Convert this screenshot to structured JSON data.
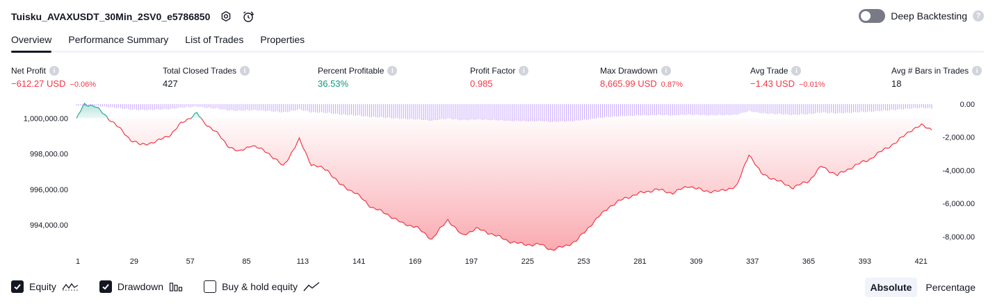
{
  "header": {
    "title": "Tuisku_AVAXUSDT_30Min_2SV0_e5786850",
    "deep_backtesting_label": "Deep Backtesting",
    "help_glyph": "?"
  },
  "tabs": [
    {
      "label": "Overview",
      "active": true
    },
    {
      "label": "Performance Summary",
      "active": false
    },
    {
      "label": "List of Trades",
      "active": false
    },
    {
      "label": "Properties",
      "active": false
    }
  ],
  "metrics": [
    {
      "label": "Net Profit",
      "value": "−612.27 USD",
      "pct": "−0.06%",
      "color": "red"
    },
    {
      "label": "Total Closed Trades",
      "value": "427",
      "pct": "",
      "color": "dark"
    },
    {
      "label": "Percent Profitable",
      "value": "36.53%",
      "pct": "",
      "color": "green"
    },
    {
      "label": "Profit Factor",
      "value": "0.985",
      "pct": "",
      "color": "red"
    },
    {
      "label": "Max Drawdown",
      "value": "8,665.99 USD",
      "pct": "0.87%",
      "color": "red"
    },
    {
      "label": "Avg Trade",
      "value": "−1.43 USD",
      "pct": "−0.01%",
      "color": "red"
    },
    {
      "label": "Avg # Bars in Trades",
      "value": "18",
      "pct": "",
      "color": "dark"
    }
  ],
  "info_glyph": "i",
  "chart_data": {
    "type": "area",
    "x_ticks": [
      "1",
      "29",
      "57",
      "85",
      "113",
      "141",
      "169",
      "197",
      "225",
      "253",
      "281",
      "309",
      "337",
      "365",
      "393",
      "421"
    ],
    "x_range": [
      1,
      427
    ],
    "y_left_ticks": [
      "1,000,000.00",
      "998,000.00",
      "996,000.00",
      "994,000.00"
    ],
    "y_left_range": [
      992600,
      1000800
    ],
    "y_right_ticks": [
      "0.00",
      "-2,000.00",
      "-4,000.00",
      "-6,000.00",
      "-8,000.00"
    ],
    "y_right_range": [
      -8800,
      0
    ],
    "baseline": 1000000,
    "series": [
      {
        "name": "Equity",
        "anchors": [
          [
            1,
            1000000
          ],
          [
            5,
            1000800
          ],
          [
            10,
            1000700
          ],
          [
            14,
            1000300
          ],
          [
            20,
            999700
          ],
          [
            28,
            998800
          ],
          [
            33,
            998500
          ],
          [
            41,
            998700
          ],
          [
            48,
            999100
          ],
          [
            53,
            999700
          ],
          [
            57,
            1000000
          ],
          [
            61,
            1000300
          ],
          [
            64,
            999800
          ],
          [
            70,
            999300
          ],
          [
            76,
            998500
          ],
          [
            82,
            998100
          ],
          [
            88,
            998500
          ],
          [
            96,
            998100
          ],
          [
            104,
            997300
          ],
          [
            112,
            998800
          ],
          [
            118,
            997400
          ],
          [
            126,
            997100
          ],
          [
            132,
            996300
          ],
          [
            140,
            995800
          ],
          [
            148,
            995000
          ],
          [
            156,
            994600
          ],
          [
            163,
            994100
          ],
          [
            170,
            993900
          ],
          [
            178,
            993200
          ],
          [
            186,
            994300
          ],
          [
            193,
            993400
          ],
          [
            200,
            993800
          ],
          [
            208,
            993500
          ],
          [
            216,
            993100
          ],
          [
            224,
            992900
          ],
          [
            232,
            992900
          ],
          [
            238,
            992600
          ],
          [
            244,
            992800
          ],
          [
            250,
            993100
          ],
          [
            258,
            994100
          ],
          [
            266,
            995000
          ],
          [
            274,
            995500
          ],
          [
            282,
            995800
          ],
          [
            290,
            996000
          ],
          [
            298,
            995800
          ],
          [
            306,
            996200
          ],
          [
            314,
            995900
          ],
          [
            322,
            995900
          ],
          [
            330,
            996200
          ],
          [
            336,
            998000
          ],
          [
            342,
            996900
          ],
          [
            350,
            996500
          ],
          [
            358,
            996100
          ],
          [
            366,
            996500
          ],
          [
            372,
            997300
          ],
          [
            380,
            996800
          ],
          [
            388,
            997300
          ],
          [
            396,
            997700
          ],
          [
            404,
            998300
          ],
          [
            410,
            998700
          ],
          [
            416,
            999300
          ],
          [
            422,
            999600
          ],
          [
            427,
            999400
          ]
        ]
      },
      {
        "name": "Drawdown"
      }
    ]
  },
  "legend": [
    {
      "label": "Equity",
      "checked": true,
      "icon": "equity-line-icon"
    },
    {
      "label": "Drawdown",
      "checked": true,
      "icon": "drawdown-bars-icon"
    },
    {
      "label": "Buy & hold equity",
      "checked": false,
      "icon": "buy-hold-line-icon"
    }
  ],
  "modes": [
    {
      "label": "Absolute",
      "active": true
    },
    {
      "label": "Percentage",
      "active": false
    }
  ],
  "colors": {
    "equity_line_above": "#22ab94",
    "equity_line_below": "#f23645",
    "drawdown_bar": "#b388ff",
    "negative": "#f23645",
    "positive": "#089981",
    "text": "#131722"
  }
}
